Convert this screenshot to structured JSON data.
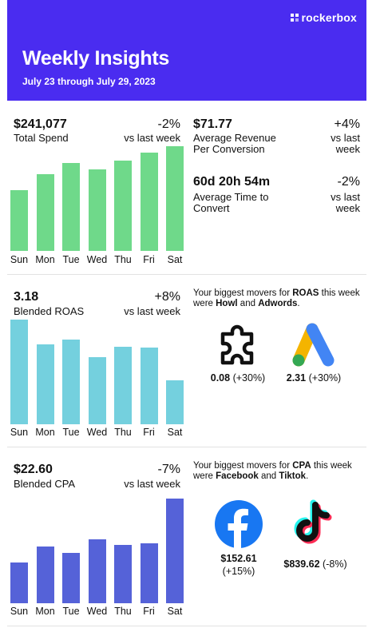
{
  "header": {
    "brand": "rockerbox",
    "title": "Weekly Insights",
    "date_range": "July 23 through July 29, 2023"
  },
  "days": [
    "Sun",
    "Mon",
    "Tue",
    "Wed",
    "Thu",
    "Fri",
    "Sat"
  ],
  "spend": {
    "value": "$241,077",
    "label": "Total Spend",
    "delta": "-2%",
    "vs": "vs last week",
    "bar_color": "#6fd98a",
    "bar_heights_rel": [
      0.58,
      0.73,
      0.84,
      0.78,
      0.86,
      0.94,
      1.0
    ]
  },
  "revenue": {
    "value": "$71.77",
    "label_line1": "Average Revenue",
    "label_line2": "Per Conversion",
    "delta": "+4%",
    "vs_line1": "vs last",
    "vs_line2": "week"
  },
  "time_to_convert": {
    "value": "60d 20h 54m",
    "label_line1": "Average Time to",
    "label_line2": "Convert",
    "delta": "-2%",
    "vs_line1": "vs last",
    "vs_line2": "week"
  },
  "roas": {
    "value": "3.18",
    "label": "Blended ROAS",
    "delta": "+8%",
    "vs": "vs last week",
    "bar_color": "#74d0de",
    "bar_heights_rel": [
      1.0,
      0.76,
      0.81,
      0.64,
      0.74,
      0.73,
      0.42
    ],
    "movers_prefix": "Your biggest movers for ",
    "movers_metric": "ROAS",
    "movers_mid": " this week were ",
    "movers_a": "Howl",
    "movers_and": " and ",
    "movers_b": "Adwords",
    "movers_end": ".",
    "mover1_value": "0.08",
    "mover1_pct": "(+30%)",
    "mover2_value": "2.31",
    "mover2_pct": "(+30%)"
  },
  "cpa": {
    "value": "$22.60",
    "label": "Blended CPA",
    "delta": "-7%",
    "vs": "vs last week",
    "bar_color": "#5562d8",
    "bar_heights_rel": [
      0.39,
      0.54,
      0.48,
      0.61,
      0.56,
      0.57,
      1.0
    ],
    "movers_prefix": "Your biggest movers for ",
    "movers_metric": "CPA",
    "movers_mid": " this week were ",
    "movers_a": "Facebook",
    "movers_and": " and ",
    "movers_b": "Tiktok",
    "movers_end": ".",
    "mover1_value": "$152.61",
    "mover1_pct": "(+15%)",
    "mover2_value": "$839.62",
    "mover2_pct": "(-8%)"
  }
}
